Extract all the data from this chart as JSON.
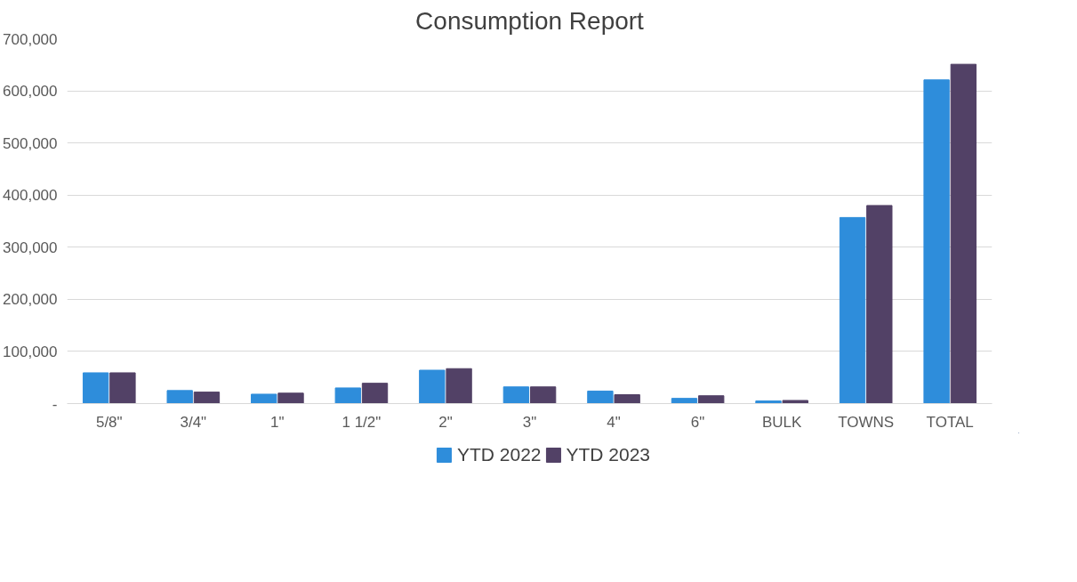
{
  "chart_data": {
    "type": "bar",
    "title": "Consumption Report",
    "categories": [
      "5/8\"",
      "3/4\"",
      "1\"",
      "1 1/2\"",
      "2\"",
      "3\"",
      "4\"",
      "6\"",
      "BULK",
      "TOWNS",
      "TOTAL"
    ],
    "series": [
      {
        "name": "YTD 2022",
        "color": "#2e8ddb",
        "values": [
          59000,
          25000,
          18000,
          30000,
          64000,
          32000,
          24000,
          10000,
          5000,
          357000,
          621000
        ]
      },
      {
        "name": "YTD 2023",
        "color": "#524166",
        "values": [
          59000,
          22000,
          20000,
          39000,
          67000,
          32000,
          17000,
          15000,
          6000,
          380000,
          651000
        ]
      }
    ],
    "ylim": [
      0,
      700000
    ],
    "yticks": [
      {
        "value": 0,
        "label": "-"
      },
      {
        "value": 100000,
        "label": "100,000"
      },
      {
        "value": 200000,
        "label": "200,000"
      },
      {
        "value": 300000,
        "label": "300,000"
      },
      {
        "value": 400000,
        "label": "400,000"
      },
      {
        "value": 500000,
        "label": "500,000"
      },
      {
        "value": 600000,
        "label": "600,000"
      },
      {
        "value": 700000,
        "label": "700,000"
      }
    ],
    "grid": "y",
    "legend": "bottom"
  }
}
